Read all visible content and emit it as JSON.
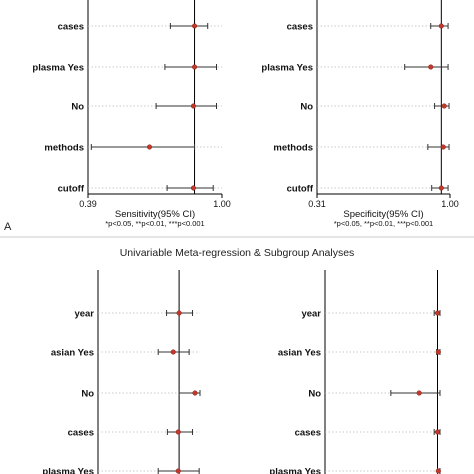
{
  "figure": {
    "section_title": "Univariable Meta-regression & Subgroup Analyses",
    "panel_letter": "A",
    "footnote": "*p<0.05, **p<0.01, ***p<0.001"
  },
  "chart_data": [
    {
      "type": "forest",
      "panel": "top-left",
      "xlabel": "Sensitivity(95% CI)",
      "tick_labels": [
        "0.39",
        "1.00"
      ],
      "xlim": [
        0.39,
        1.0
      ],
      "reference_line": 0.875,
      "rows": [
        {
          "label": "cases",
          "est": 0.875,
          "lo": 0.765,
          "hi": 0.935
        },
        {
          "label": "plasma Yes",
          "est": 0.875,
          "lo": 0.74,
          "hi": 0.975
        },
        {
          "label": "No",
          "est": 0.87,
          "lo": 0.7,
          "hi": 0.975
        },
        {
          "label": "methods",
          "est": 0.67,
          "lo": 0.405,
          "hi": 0.875
        },
        {
          "label": "cutoff",
          "est": 0.87,
          "lo": 0.75,
          "hi": 0.96
        }
      ]
    },
    {
      "type": "forest",
      "panel": "top-right",
      "xlabel": "Specificity(95% CI)",
      "tick_labels": [
        "0.31",
        "1.00"
      ],
      "xlim": [
        0.31,
        1.0
      ],
      "reference_line": 0.955,
      "rows": [
        {
          "label": "cases",
          "est": 0.955,
          "lo": 0.9,
          "hi": 0.99
        },
        {
          "label": "plasma Yes",
          "est": 0.9,
          "lo": 0.765,
          "hi": 0.99
        },
        {
          "label": "No",
          "est": 0.97,
          "lo": 0.92,
          "hi": 0.995
        },
        {
          "label": "methods",
          "est": 0.965,
          "lo": 0.885,
          "hi": 0.995
        },
        {
          "label": "cutoff",
          "est": 0.955,
          "lo": 0.905,
          "hi": 0.99
        }
      ]
    },
    {
      "type": "forest",
      "panel": "bottom-left",
      "xlabel": "",
      "tick_labels": [],
      "xlim": [
        0.39,
        1.0
      ],
      "reference_line": 0.875,
      "rows": [
        {
          "label": "year",
          "est": 0.875,
          "lo": 0.8,
          "hi": 0.955
        },
        {
          "label": "asian Yes",
          "est": 0.84,
          "lo": 0.75,
          "hi": 0.935
        },
        {
          "label": "No",
          "est": 0.97,
          "lo": 0.875,
          "hi": 1.0
        },
        {
          "label": "cases",
          "est": 0.87,
          "lo": 0.805,
          "hi": 0.955
        },
        {
          "label": "plasma Yes",
          "est": 0.87,
          "lo": 0.75,
          "hi": 0.995
        }
      ]
    },
    {
      "type": "forest",
      "panel": "bottom-right",
      "xlabel": "",
      "tick_labels": [],
      "xlim": [
        0.31,
        1.0
      ],
      "reference_line": 0.985,
      "rows": [
        {
          "label": "year",
          "est": 0.985,
          "lo": 0.965,
          "hi": 1.0
        },
        {
          "label": "asian Yes",
          "est": 0.99,
          "lo": 0.98,
          "hi": 1.0
        },
        {
          "label": "No",
          "est": 0.875,
          "lo": 0.705,
          "hi": 1.0
        },
        {
          "label": "cases",
          "est": 0.985,
          "lo": 0.965,
          "hi": 1.0
        },
        {
          "label": "plasma Yes",
          "est": 0.99,
          "lo": 0.985,
          "hi": 1.0
        }
      ]
    }
  ]
}
